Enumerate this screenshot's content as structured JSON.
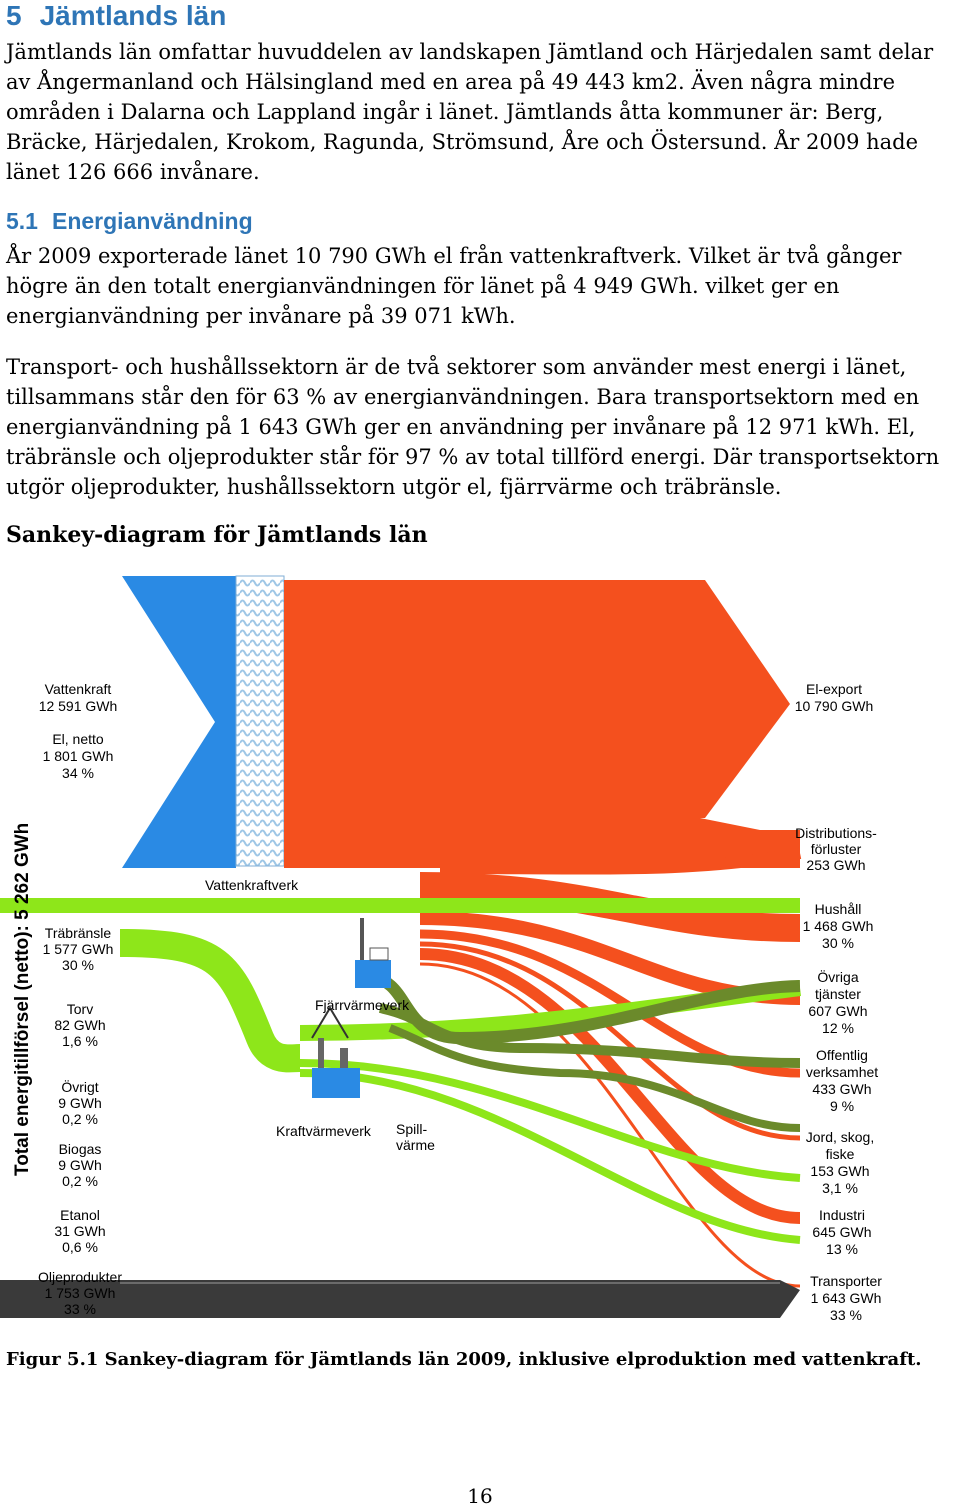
{
  "section": {
    "number": "5",
    "title": "Jämtlands län"
  },
  "intro": "Jämtlands län omfattar huvuddelen av landskapen Jämtland och Härjedalen samt delar av Ångermanland och Hälsingland med en area på 49 443 km2. Även några mindre områden i Dalarna och Lappland ingår i länet. Jämtlands åtta kommuner är: Berg, Bräcke, Härjedalen, Krokom, Ragunda, Strömsund, Åre och Östersund. År 2009 hade länet 126 666 invånare.",
  "subsection": {
    "number": "5.1",
    "title": "Energianvändning"
  },
  "para1": "År 2009 exporterade länet 10 790 GWh el från vattenkraftverk. Vilket är två gånger högre än den totalt energianvändningen för länet på 4 949 GWh. vilket ger en energianvändning per invånare på 39 071 kWh.",
  "para2": "Transport- och hushållssektorn är de två sektorer som använder mest energi i länet, tillsammans står den för 63 % av energianvändningen. Bara transportsektorn med en energianvändning på 1 643 GWh ger en användning per invånare på 12 971 kWh.  El, träbränsle och oljeprodukter står för 97 % av total tillförd energi. Där transportsektorn utgör oljeprodukter, hushållssektorn utgör el, fjärrvärme och träbränsle.",
  "diagram_heading": "Sankey-diagram för Jämtlands län",
  "diagram": {
    "total_label": "Total energitillförsel (netto): 5 262 GWh",
    "inputs": [
      {
        "name": "Vattenkraft",
        "value": "12 591 GWh",
        "share": ""
      },
      {
        "name": "El, netto",
        "value": "1 801 GWh",
        "share": "34 %"
      },
      {
        "name": "Träbränsle",
        "value": "1 577 GWh",
        "share": "30 %"
      },
      {
        "name": "Torv",
        "value": "82 GWh",
        "share": "1,6 %"
      },
      {
        "name": "Övrigt",
        "value": "9 GWh",
        "share": "0,2 %"
      },
      {
        "name": "Biogas",
        "value": "9 GWh",
        "share": "0,2 %"
      },
      {
        "name": "Etanol",
        "value": "31 GWh",
        "share": "0,6 %"
      },
      {
        "name": "Oljeprodukter",
        "value": "1 753 GWh",
        "share": "33 %"
      }
    ],
    "outputs": [
      {
        "name": "El-export",
        "value": "10 790 GWh",
        "share": ""
      },
      {
        "name": "Distributions-",
        "name2": "förluster",
        "value": "253 GWh",
        "share": ""
      },
      {
        "name": "Hushåll",
        "name2": "",
        "value": "1 468 GWh",
        "share": "30 %"
      },
      {
        "name": "Övriga",
        "name2": "tjänster",
        "value": "607 GWh",
        "share": "12 %"
      },
      {
        "name": "Offentlig",
        "name2": "verksamhet",
        "value": "433 GWh",
        "share": "9 %"
      },
      {
        "name": "Jord, skog,",
        "name2": "fiske",
        "value": "153 GWh",
        "share": "3,1 %"
      },
      {
        "name": "Industri",
        "name2": "",
        "value": "645 GWh",
        "share": "13 %"
      },
      {
        "name": "Transporter",
        "name2": "",
        "value": "1 643 GWh",
        "share": "33 %"
      }
    ],
    "nodes": {
      "hydro_plant": "Vattenkraftverk",
      "district_heating": "Fjärrvärmeverk",
      "chp": "Kraftvärmeverk",
      "waste_heat_1": "Spill-",
      "waste_heat_2": "värme"
    },
    "colors": {
      "electricity": "#f4501e",
      "hydro": "#2a8ae4",
      "wood": "#8ee61a",
      "district_heat": "#6b8a2b",
      "oil": "#3a3a3a",
      "hatch": "#9fc7e6"
    }
  },
  "caption": "Figur 5.1 Sankey-diagram för Jämtlands län 2009, inklusive elproduktion med vattenkraft.",
  "page_number": "16"
}
